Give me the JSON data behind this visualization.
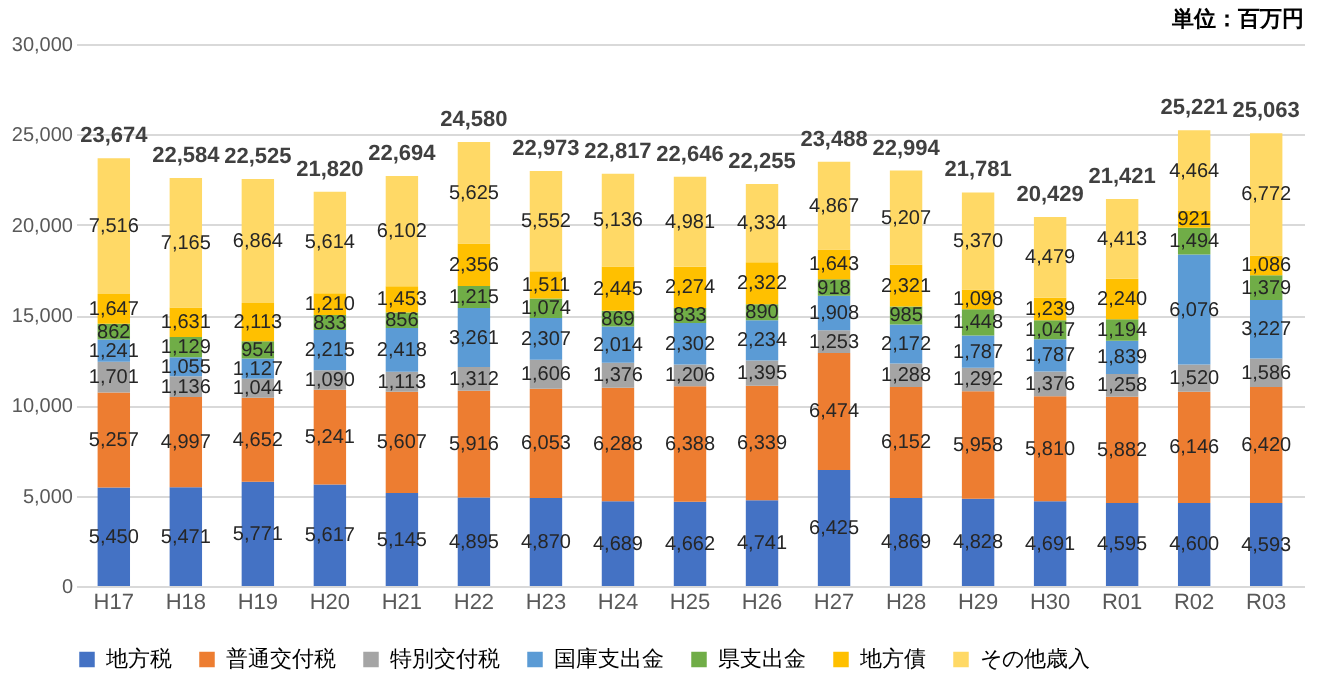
{
  "chart_data": {
    "type": "bar",
    "stacked": true,
    "grid": "y",
    "legend": "bottom",
    "annotations": [
      "単位：百万円"
    ],
    "categories": [
      "H17",
      "H18",
      "H19",
      "H20",
      "H21",
      "H22",
      "H23",
      "H24",
      "H25",
      "H26",
      "H27",
      "H28",
      "H29",
      "H30",
      "R01",
      "R02",
      "R03"
    ],
    "ylim": [
      0,
      30000
    ],
    "yticks": [
      0,
      {
        "value": 5000,
        "label": "5,000"
      },
      {
        "value": 10000,
        "label": "10,000"
      },
      {
        "value": 15000,
        "label": "15,000"
      },
      {
        "value": 20000,
        "label": "20,000"
      },
      {
        "value": 25000,
        "label": "25,000"
      },
      {
        "value": 30000,
        "label": "30,000"
      }
    ],
    "series": [
      {
        "name": "地方税",
        "color": "#4472c4",
        "values": [
          5450,
          5471,
          5771,
          5617,
          5145,
          4895,
          4870,
          4689,
          4662,
          4741,
          6425,
          4869,
          4828,
          4691,
          4595,
          4600,
          4593
        ],
        "value_labels": [
          "5,450",
          "5,471",
          "5,771",
          "5,617",
          "5,145",
          "4,895",
          "4,870",
          "4,689",
          "4,662",
          "4,741",
          "6,425",
          "4,869",
          "4,828",
          "4,691",
          "4,595",
          "4,600",
          "4,593"
        ]
      },
      {
        "name": "普通交付税",
        "color": "#ed7d31",
        "values": [
          5257,
          4997,
          4652,
          5241,
          5607,
          5916,
          6053,
          6288,
          6388,
          6339,
          6474,
          6152,
          5958,
          5810,
          5882,
          6146,
          6420
        ],
        "value_labels": [
          "5,257",
          "4,997",
          "4,652",
          "5,241",
          "5,607",
          "5,916",
          "6,053",
          "6,288",
          "6,388",
          "6,339",
          "6,474",
          "6,152",
          "5,958",
          "5,810",
          "5,882",
          "6,146",
          "6,420"
        ]
      },
      {
        "name": "特別交付税",
        "color": "#a5a5a5",
        "values": [
          1701,
          1136,
          1044,
          1090,
          1113,
          1312,
          1606,
          1376,
          1206,
          1395,
          1253,
          1288,
          1292,
          1376,
          1258,
          1520,
          1586
        ],
        "value_labels": [
          "1,701",
          "1,136",
          "1,044",
          "1,090",
          "1,113",
          "1,312",
          "1,606",
          "1,376",
          "1,206",
          "1,395",
          "1,253",
          "1,288",
          "1,292",
          "1,376",
          "1,258",
          "1,520",
          "1,586"
        ]
      },
      {
        "name": "国庫支出金",
        "color": "#5b9bd5",
        "values": [
          1241,
          1055,
          1127,
          2215,
          2418,
          3261,
          2307,
          2014,
          2302,
          2234,
          1908,
          2172,
          1787,
          1787,
          1839,
          6076,
          3227
        ],
        "value_labels": [
          "1,241",
          "1,055",
          "1,127",
          "2,215",
          "2,418",
          "3,261",
          "2,307",
          "2,014",
          "2,302",
          "2,234",
          "1,908",
          "2,172",
          "1,787",
          "1,787",
          "1,839",
          "6,076",
          "3,227"
        ]
      },
      {
        "name": "県支出金",
        "color": "#70ad47",
        "values": [
          862,
          1129,
          954,
          833,
          856,
          1215,
          1074,
          869,
          833,
          890,
          918,
          985,
          1448,
          1047,
          1194,
          1494,
          1379
        ],
        "value_labels": [
          "862",
          "1,129",
          "954",
          "833",
          "856",
          "1,215",
          "1,074",
          "869",
          "833",
          "890",
          "918",
          "985",
          "1,448",
          "1,047",
          "1,194",
          "1,494",
          "1,379"
        ]
      },
      {
        "name": "地方債",
        "color": "#ffc000",
        "values": [
          1647,
          1631,
          2113,
          1210,
          1453,
          2356,
          1511,
          2445,
          2274,
          2322,
          1643,
          2321,
          1098,
          1239,
          2240,
          921,
          1086
        ],
        "value_labels": [
          "1,647",
          "1,631",
          "2,113",
          "1,210",
          "1,453",
          "2,356",
          "1,511",
          "2,445",
          "2,274",
          "2,322",
          "1,643",
          "2,321",
          "1,098",
          "1,239",
          "2,240",
          "921",
          "1,086"
        ]
      },
      {
        "name": "その他歳入",
        "color": "#ffd966",
        "values": [
          7516,
          7165,
          6864,
          5614,
          6102,
          5625,
          5552,
          5136,
          4981,
          4334,
          4867,
          5207,
          5370,
          4479,
          4413,
          4464,
          6772
        ],
        "value_labels": [
          "7,516",
          "7,165",
          "6,864",
          "5,614",
          "6,102",
          "5,625",
          "5,552",
          "5,136",
          "4,981",
          "4,334",
          "4,867",
          "5,207",
          "5,370",
          "4,479",
          "4,413",
          "4,464",
          "6,772"
        ]
      }
    ],
    "totals": [
      "23,674",
      "22,584",
      "22,525",
      "21,820",
      "22,694",
      "24,580",
      "22,973",
      "22,817",
      "22,646",
      "22,255",
      "23,488",
      "22,994",
      "21,781",
      "20,429",
      "21,421",
      "25,221",
      "25,063"
    ]
  }
}
